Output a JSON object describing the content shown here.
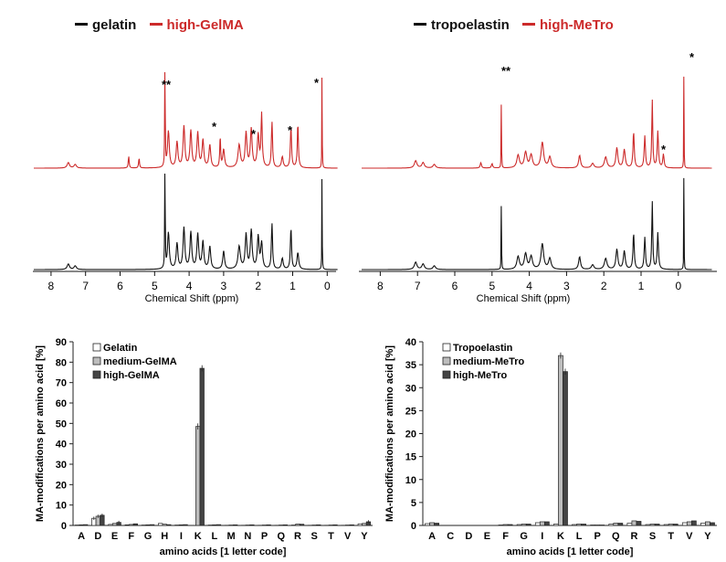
{
  "nmr_legends": {
    "left": [
      {
        "label": "gelatin",
        "color": "#111111"
      },
      {
        "label": "high-GelMA",
        "color": "#cc2a2a"
      }
    ],
    "right": [
      {
        "label": "tropoelastin",
        "color": "#111111"
      },
      {
        "label": "high-MeTro",
        "color": "#cc2a2a"
      }
    ]
  },
  "nmr_axis": {
    "xlabel": "Chemical Shift (ppm)",
    "ticks": [
      "8",
      "7",
      "6",
      "5",
      "4",
      "3",
      "2",
      "1",
      "0"
    ]
  },
  "nmr_markers": {
    "left": [
      "**",
      "*",
      "*",
      "*",
      "*"
    ],
    "right": [
      "**",
      "*",
      "*"
    ]
  },
  "chart_data": [
    {
      "type": "bar",
      "panel": "bottom-left",
      "xlabel": "amino acids [1 letter code]",
      "ylabel": "MA-modifications per amino acid [%]",
      "ylim": [
        0,
        90
      ],
      "yticks": [
        0,
        10,
        20,
        30,
        40,
        50,
        60,
        70,
        80,
        90
      ],
      "categories": [
        "A",
        "D",
        "E",
        "F",
        "G",
        "H",
        "I",
        "K",
        "L",
        "M",
        "N",
        "P",
        "Q",
        "R",
        "S",
        "T",
        "V",
        "Y"
      ],
      "series": [
        {
          "name": "Gelatin",
          "color": "#ffffff",
          "values": [
            0.2,
            3.5,
            0.5,
            0.3,
            0.2,
            1.0,
            0.2,
            0,
            0.2,
            0.1,
            0.1,
            0.1,
            0.1,
            0.2,
            0.1,
            0.1,
            0.1,
            0.8
          ]
        },
        {
          "name": "medium-GelMA",
          "color": "#bdbdbd",
          "values": [
            0.3,
            4.5,
            1.0,
            0.5,
            0.3,
            0.6,
            0.3,
            48.5,
            0.3,
            0.2,
            0.2,
            0.2,
            0.2,
            0.7,
            0.2,
            0.2,
            0.2,
            1.0
          ]
        },
        {
          "name": "high-GelMA",
          "color": "#444444",
          "values": [
            0.4,
            5.0,
            1.5,
            0.8,
            0.4,
            0.4,
            0.4,
            77.0,
            0.4,
            0.3,
            0.3,
            0.3,
            0.3,
            0.6,
            0.3,
            0.3,
            0.3,
            1.8
          ]
        }
      ]
    },
    {
      "type": "bar",
      "panel": "bottom-right",
      "xlabel": "amino acids [1 letter code]",
      "ylabel": "MA-modifications per amino acid [%]",
      "ylim": [
        0,
        40
      ],
      "yticks": [
        0,
        5,
        10,
        15,
        20,
        25,
        30,
        35,
        40
      ],
      "categories": [
        "A",
        "C",
        "D",
        "E",
        "F",
        "G",
        "I",
        "K",
        "L",
        "P",
        "Q",
        "R",
        "S",
        "T",
        "V",
        "Y"
      ],
      "series": [
        {
          "name": "Tropoelastin",
          "color": "#ffffff",
          "values": [
            0.4,
            0,
            0,
            0,
            0.1,
            0.2,
            0.6,
            0.3,
            0.2,
            0.1,
            0.3,
            0.5,
            0.2,
            0.2,
            0.6,
            0.5
          ]
        },
        {
          "name": "medium-MeTro",
          "color": "#bdbdbd",
          "values": [
            0.6,
            0,
            0,
            0,
            0.2,
            0.3,
            0.8,
            37.0,
            0.3,
            0.1,
            0.5,
            1.0,
            0.3,
            0.3,
            0.8,
            0.8
          ]
        },
        {
          "name": "high-MeTro",
          "color": "#444444",
          "values": [
            0.5,
            0,
            0,
            0,
            0.2,
            0.3,
            0.8,
            33.5,
            0.3,
            0.1,
            0.5,
            0.9,
            0.3,
            0.3,
            1.0,
            0.6
          ]
        }
      ]
    }
  ]
}
